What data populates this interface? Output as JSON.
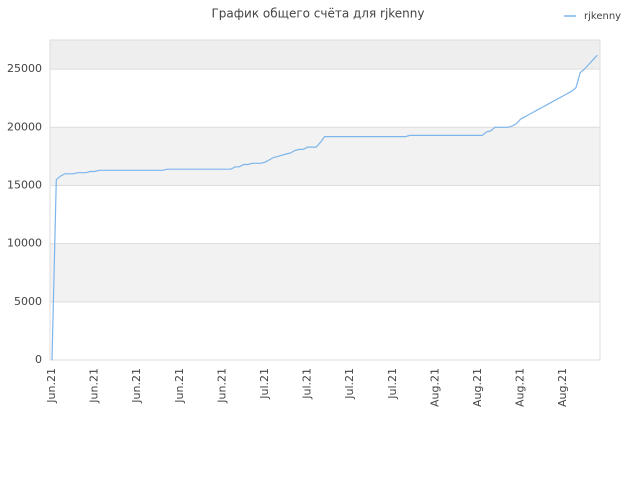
{
  "chart_data": {
    "type": "line",
    "title": "График общего счёта для rjkenny",
    "categories": [
      "Jun.21",
      null,
      null,
      null,
      null,
      null,
      null,
      null,
      null,
      null,
      "Jun.21",
      null,
      null,
      null,
      null,
      null,
      null,
      null,
      null,
      null,
      "Jun.21",
      null,
      null,
      null,
      null,
      null,
      null,
      null,
      null,
      null,
      "Jun.21",
      null,
      null,
      null,
      null,
      null,
      null,
      null,
      null,
      null,
      "Jun.21",
      null,
      null,
      null,
      null,
      null,
      null,
      null,
      null,
      null,
      "Jul.21",
      null,
      null,
      null,
      null,
      null,
      null,
      null,
      null,
      null,
      "Jul.21",
      null,
      null,
      null,
      null,
      null,
      null,
      null,
      null,
      null,
      "Jul.21",
      null,
      null,
      null,
      null,
      null,
      null,
      null,
      null,
      null,
      "Jul.21",
      null,
      null,
      null,
      null,
      null,
      null,
      null,
      null,
      null,
      "Aug.21",
      null,
      null,
      null,
      null,
      null,
      null,
      null,
      null,
      null,
      "Aug.21",
      null,
      null,
      null,
      null,
      null,
      null,
      null,
      null,
      null,
      "Aug.21",
      null,
      null,
      null,
      null,
      null,
      null,
      null,
      null,
      null,
      "Aug.21",
      null,
      null,
      null,
      null,
      null,
      null,
      null,
      null
    ],
    "series": [
      {
        "name": "rjkenny",
        "color": "#7cb5ec",
        "values": [
          0,
          15500,
          15800,
          16000,
          16000,
          16000,
          16100,
          16100,
          16100,
          16200,
          16200,
          16300,
          16300,
          16300,
          16300,
          16300,
          16300,
          16300,
          16300,
          16300,
          16300,
          16300,
          16300,
          16300,
          16300,
          16300,
          16300,
          16400,
          16400,
          16400,
          16400,
          16400,
          16400,
          16400,
          16400,
          16400,
          16400,
          16400,
          16400,
          16400,
          16400,
          16400,
          16400,
          16600,
          16600,
          16800,
          16800,
          16900,
          16900,
          16900,
          17000,
          17200,
          17400,
          17500,
          17600,
          17700,
          17800,
          18000,
          18100,
          18100,
          18300,
          18300,
          18300,
          18700,
          19200,
          19200,
          19200,
          19200,
          19200,
          19200,
          19200,
          19200,
          19200,
          19200,
          19200,
          19200,
          19200,
          19200,
          19200,
          19200,
          19200,
          19200,
          19200,
          19200,
          19300,
          19300,
          19300,
          19300,
          19300,
          19300,
          19300,
          19300,
          19300,
          19300,
          19300,
          19300,
          19300,
          19300,
          19300,
          19300,
          19300,
          19300,
          19600,
          19700,
          20000,
          20000,
          20000,
          20000,
          20100,
          20300,
          20700,
          20900,
          21100,
          21300,
          21500,
          21700,
          21900,
          22100,
          22300,
          22500,
          22700,
          22900,
          23100,
          23400,
          24700,
          25000,
          25400,
          25800,
          26200
        ]
      }
    ],
    "ylim": [
      0,
      27500
    ],
    "yticks": [
      0,
      5000,
      10000,
      15000,
      20000,
      25000
    ],
    "grid": true,
    "legend": "top-right"
  }
}
